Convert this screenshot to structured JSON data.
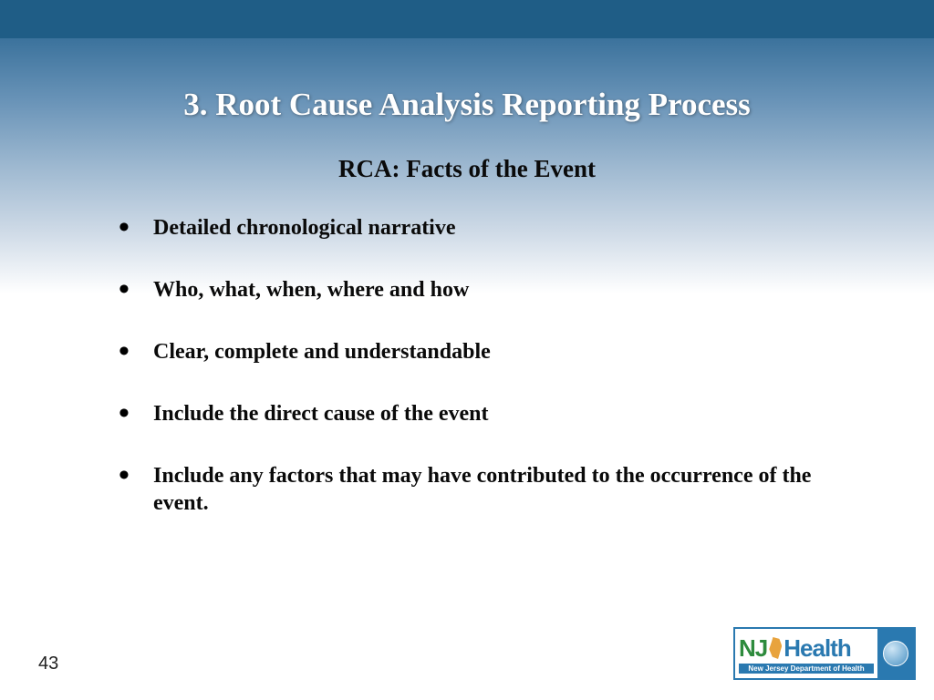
{
  "colors": {
    "top_bar": "#1f5d86",
    "gradient_top": "#3b729c",
    "gradient_bottom": "#ffffff",
    "title_color": "#ffffff",
    "body_text": "#0a0a0a",
    "logo_border": "#2a79b0",
    "logo_green": "#2e8b3d",
    "logo_blue": "#2a79b0",
    "nj_shape": "#e8a33d"
  },
  "typography": {
    "title_fontsize": 35,
    "subtitle_fontsize": 27,
    "bullet_fontsize": 24,
    "pagenum_fontsize": 20,
    "font_family": "Georgia, serif"
  },
  "title": "3. Root Cause Analysis Reporting Process",
  "subtitle": "RCA: Facts of the Event",
  "bullets": [
    "Detailed chronological narrative",
    "Who, what, when, where and how",
    "Clear, complete and understandable",
    "Include the direct cause of the event",
    "Include any factors that may have contributed to the occurrence of the event."
  ],
  "page_number": "43",
  "logo": {
    "nj": "NJ",
    "health": "Health",
    "subtitle": "New Jersey Department of Health"
  }
}
